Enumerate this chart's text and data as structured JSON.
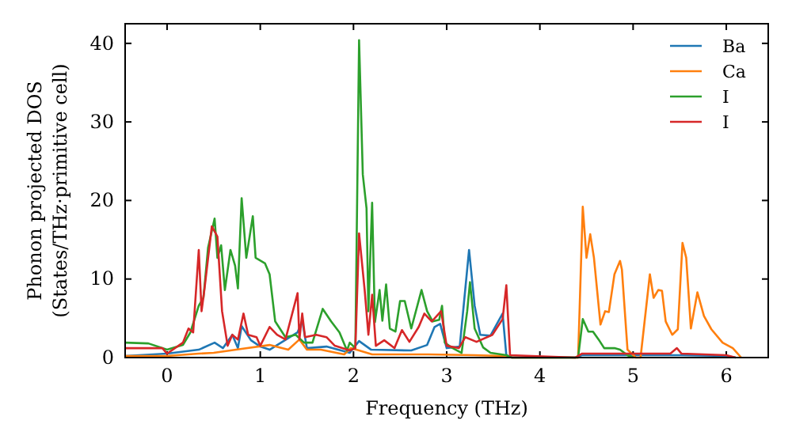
{
  "chart_data": {
    "type": "line",
    "xlabel": "Frequency (THz)",
    "ylabel": "Phonon projected DOS\n(States/THz·primitive cell)",
    "xlim": [
      -0.45,
      6.45
    ],
    "ylim": [
      0,
      42.5
    ],
    "xticks": [
      0,
      1,
      2,
      3,
      4,
      5,
      6
    ],
    "yticks": [
      0,
      10,
      20,
      30,
      40
    ],
    "grid": false,
    "legend": "top right",
    "marker": "none",
    "line_style": "solid",
    "series": [
      {
        "name": "Ba",
        "color": "#1f77b4",
        "x": [
          -0.45,
          0,
          0.34,
          0.51,
          0.6,
          0.7,
          0.76,
          0.8,
          0.9,
          1.0,
          1.1,
          1.4,
          1.45,
          1.5,
          1.71,
          1.96,
          2.06,
          2.19,
          2.62,
          2.79,
          2.87,
          2.93,
          3.0,
          3.14,
          3.24,
          3.3,
          3.36,
          3.47,
          3.6,
          3.64,
          3.7,
          4.38,
          4.45,
          5.0,
          5.5,
          6.0,
          6.1
        ],
        "values": [
          0.2,
          0.5,
          1.0,
          1.9,
          1.2,
          2.9,
          1.2,
          4.0,
          2.2,
          1.4,
          1.0,
          3.2,
          4.7,
          1.2,
          1.4,
          0.6,
          2.1,
          1.0,
          0.9,
          1.6,
          3.9,
          4.3,
          1.2,
          1.4,
          13.7,
          6.6,
          2.9,
          2.8,
          5.6,
          0.3,
          0,
          0,
          0.3,
          0.3,
          0.3,
          0.2,
          0
        ]
      },
      {
        "name": "Ca",
        "color": "#ff7f0e",
        "x": [
          -0.45,
          0,
          0.34,
          0.5,
          0.8,
          1.1,
          1.3,
          1.42,
          1.5,
          1.65,
          1.9,
          1.97,
          2.06,
          2.2,
          2.8,
          3.3,
          3.6,
          3.7,
          4.41,
          4.46,
          4.5,
          4.54,
          4.58,
          4.65,
          4.7,
          4.74,
          4.8,
          4.86,
          4.88,
          4.94,
          5.03,
          5.08,
          5.18,
          5.22,
          5.27,
          5.31,
          5.35,
          5.42,
          5.48,
          5.53,
          5.57,
          5.62,
          5.69,
          5.76,
          5.84,
          5.96,
          6.07,
          6.16
        ],
        "values": [
          0.2,
          0.2,
          0.5,
          0.6,
          1.1,
          1.6,
          1.0,
          2.3,
          1.0,
          1.0,
          0.4,
          1.2,
          0.9,
          0.4,
          0.4,
          0.3,
          0.2,
          0,
          0,
          19.2,
          12.7,
          15.7,
          12.7,
          4.2,
          5.9,
          5.8,
          10.6,
          12.3,
          11.2,
          1.0,
          0,
          0,
          10.6,
          7.6,
          8.6,
          8.5,
          4.6,
          2.9,
          3.6,
          14.6,
          12.7,
          3.7,
          8.3,
          5.3,
          3.6,
          1.9,
          1.2,
          0
        ]
      },
      {
        "name": "I",
        "color": "#2ca02c",
        "x": [
          -0.45,
          -0.2,
          0,
          0.17,
          0.25,
          0.34,
          0.39,
          0.44,
          0.51,
          0.54,
          0.58,
          0.62,
          0.68,
          0.73,
          0.76,
          0.8,
          0.85,
          0.92,
          0.95,
          1.05,
          1.1,
          1.16,
          1.27,
          1.38,
          1.47,
          1.56,
          1.67,
          1.76,
          1.85,
          1.93,
          1.96,
          2.02,
          2.06,
          2.1,
          2.14,
          2.16,
          2.2,
          2.23,
          2.28,
          2.31,
          2.35,
          2.39,
          2.45,
          2.5,
          2.55,
          2.62,
          2.73,
          2.79,
          2.85,
          2.92,
          2.95,
          2.98,
          3.05,
          3.16,
          3.22,
          3.25,
          3.3,
          3.39,
          3.47,
          3.64,
          3.7,
          4.41,
          4.46,
          4.52,
          4.57,
          4.63,
          4.69,
          4.8,
          4.86,
          4.94,
          5.0
        ],
        "values": [
          1.9,
          1.8,
          1.0,
          1.6,
          3.2,
          6.6,
          7.6,
          14.0,
          17.7,
          12.7,
          14.3,
          8.6,
          13.7,
          11.7,
          8.8,
          20.3,
          12.7,
          18.0,
          12.7,
          12.0,
          10.6,
          4.6,
          2.6,
          2.9,
          1.9,
          1.9,
          6.2,
          4.6,
          3.2,
          0.9,
          1.9,
          1.2,
          40.4,
          23.3,
          19.0,
          5.9,
          19.7,
          4.5,
          8.6,
          4.7,
          9.3,
          3.7,
          3.3,
          7.2,
          7.2,
          3.7,
          8.6,
          5.9,
          4.6,
          4.8,
          6.6,
          1.9,
          1.3,
          0.6,
          5.9,
          9.6,
          3.7,
          1.3,
          0.6,
          0.3,
          0,
          0,
          4.9,
          3.3,
          3.3,
          2.3,
          1.2,
          1.2,
          1.0,
          0.3,
          0
        ]
      },
      {
        "name": "I",
        "color": "#d62728",
        "x": [
          -0.45,
          -0.05,
          0,
          0.17,
          0.23,
          0.28,
          0.34,
          0.37,
          0.4,
          0.48,
          0.54,
          0.59,
          0.65,
          0.7,
          0.76,
          0.82,
          0.87,
          0.96,
          1.0,
          1.1,
          1.18,
          1.27,
          1.4,
          1.42,
          1.45,
          1.48,
          1.6,
          1.71,
          1.8,
          1.96,
          2.02,
          2.06,
          2.12,
          2.16,
          2.2,
          2.24,
          2.33,
          2.44,
          2.52,
          2.6,
          2.7,
          2.76,
          2.84,
          2.94,
          3.0,
          3.13,
          3.2,
          3.32,
          3.49,
          3.6,
          3.64,
          3.68,
          4.38,
          4.45,
          5.4,
          5.47,
          5.52,
          6.0,
          6.1
        ],
        "values": [
          1.2,
          1.2,
          0.5,
          1.9,
          3.7,
          3.2,
          13.7,
          5.9,
          8.6,
          16.7,
          15.4,
          5.9,
          1.5,
          2.9,
          2.3,
          5.6,
          2.9,
          2.6,
          1.5,
          3.9,
          2.9,
          2.3,
          8.2,
          2.3,
          5.6,
          2.6,
          2.9,
          2.6,
          1.5,
          0.9,
          1.2,
          15.8,
          8.6,
          2.9,
          8.0,
          1.5,
          2.2,
          1.2,
          3.5,
          2.0,
          3.9,
          5.6,
          4.6,
          5.9,
          1.5,
          1.2,
          2.6,
          2.0,
          2.9,
          4.9,
          9.2,
          0.3,
          0,
          0.5,
          0.5,
          1.2,
          0.5,
          0.3,
          0
        ]
      }
    ]
  }
}
